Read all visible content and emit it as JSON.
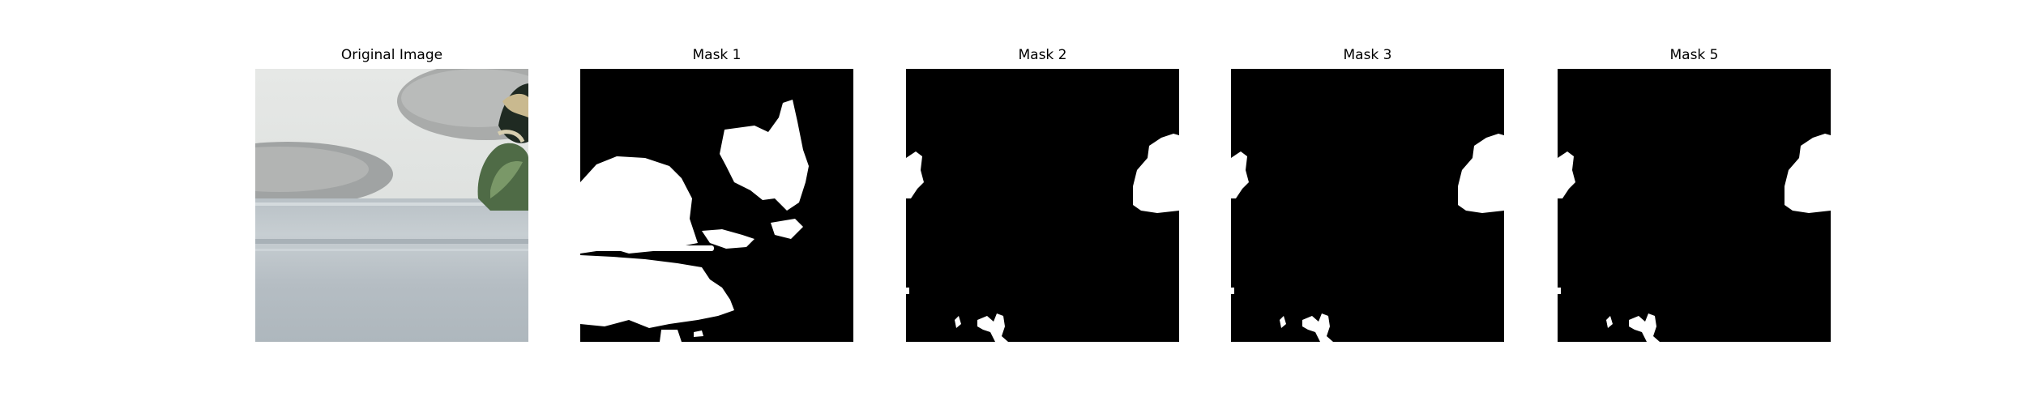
{
  "figure": {
    "panels": [
      {
        "title": "Original Image"
      },
      {
        "title": "Mask 1"
      },
      {
        "title": "Mask 2"
      },
      {
        "title": "Mask 3"
      },
      {
        "title": "Mask 5"
      }
    ]
  }
}
